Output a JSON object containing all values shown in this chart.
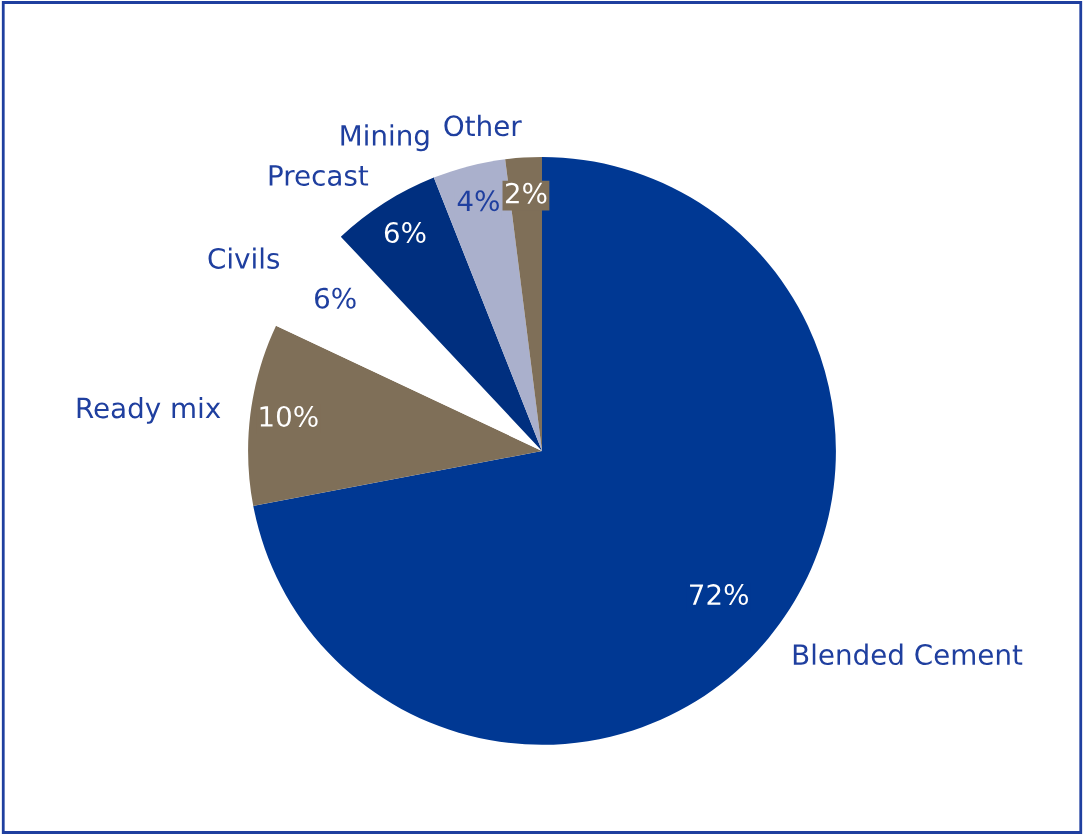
{
  "chart_data": {
    "type": "pie",
    "categories": [
      "Blended Cement",
      "Ready mix",
      "Civils",
      "Precast",
      "Mining",
      "Other"
    ],
    "values": [
      72,
      10,
      6,
      6,
      4,
      2
    ],
    "colors": [
      "#003893",
      "#7f6f58",
      "#ffffff",
      "#002f7f",
      "#aab0cc",
      "#7f6f58"
    ],
    "value_labels": [
      "72%",
      "10%",
      "6%",
      "6%",
      "4%",
      "2%"
    ],
    "legend": false
  }
}
